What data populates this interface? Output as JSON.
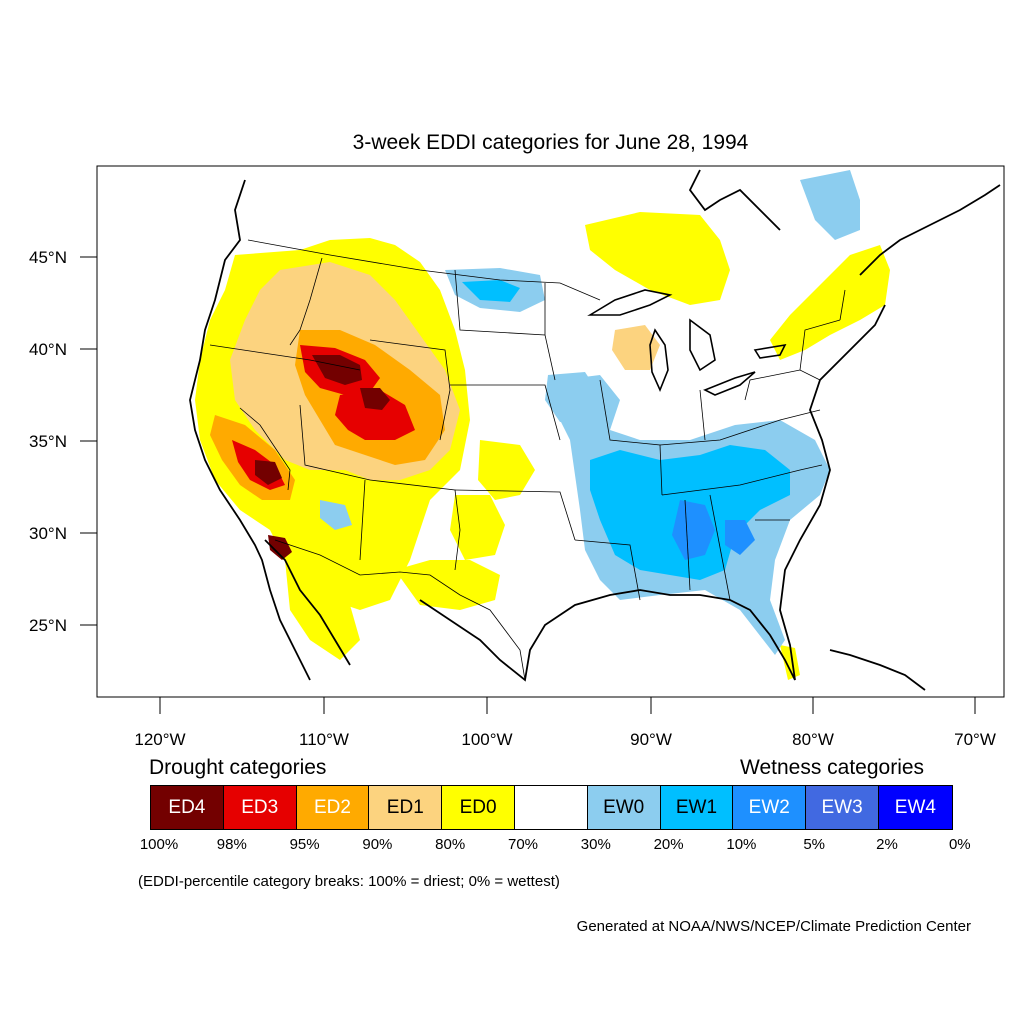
{
  "title": "3-week EDDI categories for June 28, 1994",
  "map": {
    "lat_labels": [
      "45°N",
      "40°N",
      "35°N",
      "30°N",
      "25°N"
    ],
    "lon_labels": [
      "120°W",
      "110°W",
      "100°W",
      "90°W",
      "80°W",
      "70°W"
    ]
  },
  "legend": {
    "drought_heading": "Drought categories",
    "wetness_heading": "Wetness categories",
    "categories": [
      {
        "label": "ED4",
        "color": "#730000",
        "text_color": "#ffffff"
      },
      {
        "label": "ED3",
        "color": "#e60000",
        "text_color": "#ffffff"
      },
      {
        "label": "ED2",
        "color": "#ffaa00",
        "text_color": "#ffffff"
      },
      {
        "label": "ED1",
        "color": "#fcd37f",
        "text_color": "#000000"
      },
      {
        "label": "ED0",
        "color": "#ffff00",
        "text_color": "#000000"
      },
      {
        "label": "",
        "color": "#ffffff",
        "text_color": "#000000"
      },
      {
        "label": "EW0",
        "color": "#8ccdef",
        "text_color": "#000000"
      },
      {
        "label": "EW1",
        "color": "#00bfff",
        "text_color": "#000000"
      },
      {
        "label": "EW2",
        "color": "#1e90ff",
        "text_color": "#ffffff"
      },
      {
        "label": "EW3",
        "color": "#4169e1",
        "text_color": "#ffffff"
      },
      {
        "label": "EW4",
        "color": "#0000ff",
        "text_color": "#ffffff"
      }
    ],
    "breaks": [
      "100%",
      "98%",
      "95%",
      "90%",
      "80%",
      "70%",
      "30%",
      "20%",
      "10%",
      "5%",
      "2%",
      "0%"
    ]
  },
  "note": "(EDDI-percentile category breaks: 100% = driest; 0% = wettest)",
  "credit": "Generated at NOAA/NWS/NCEP/Climate Prediction Center"
}
